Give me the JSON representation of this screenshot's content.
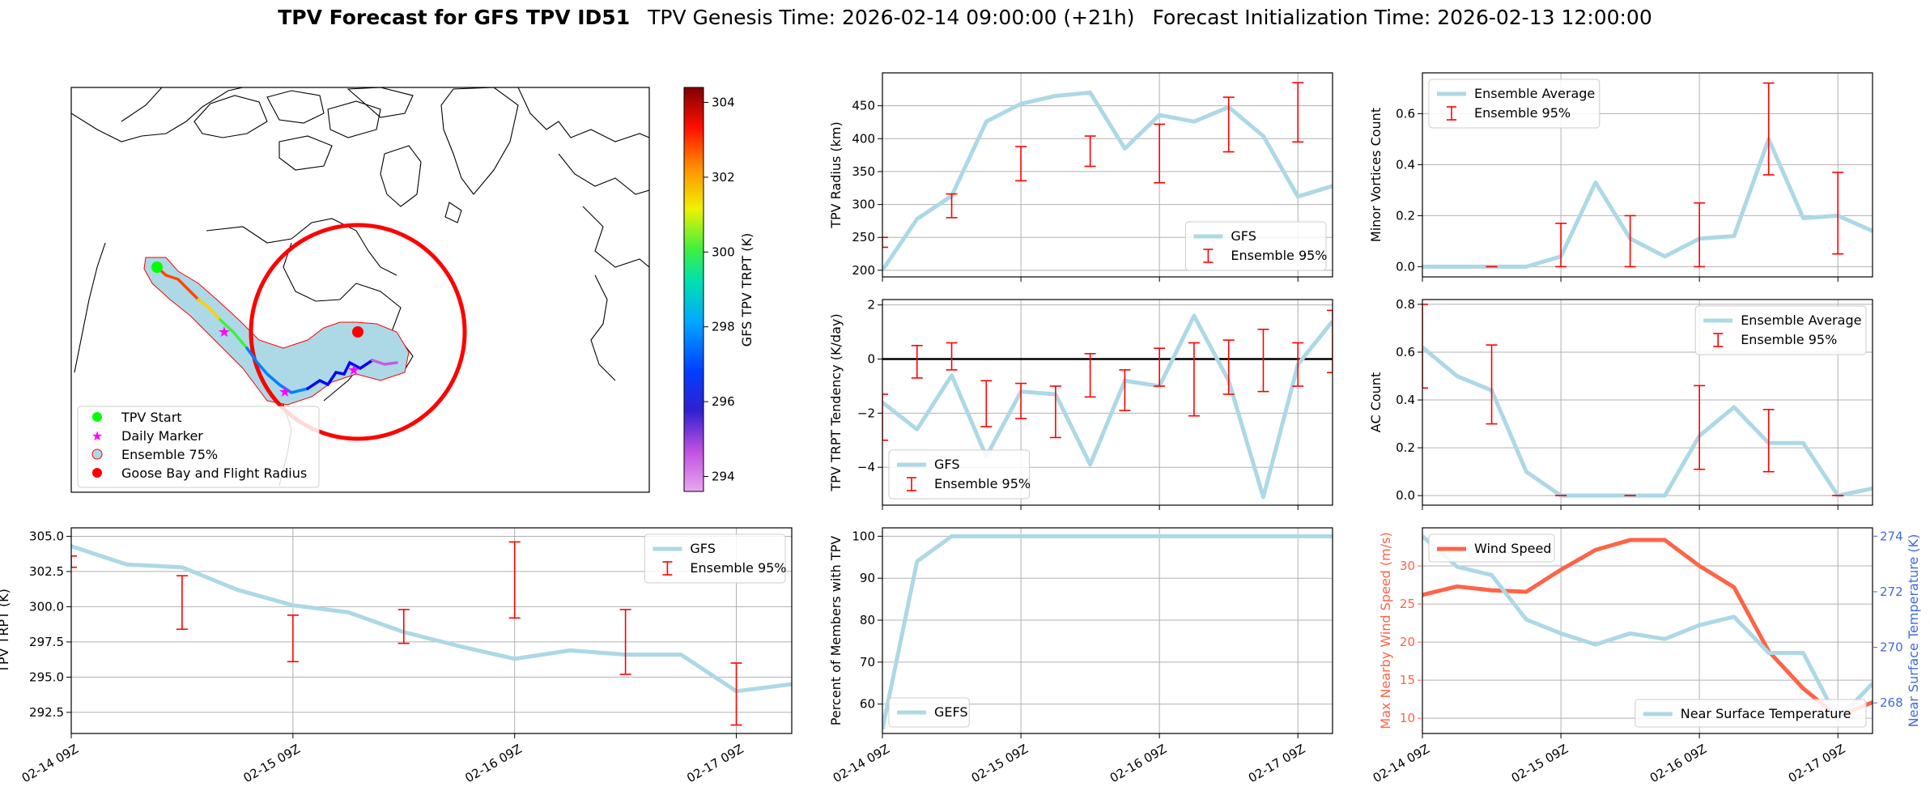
{
  "figure_title": {
    "bold": "TPV Forecast for GFS TPV ID51",
    "genesis": "TPV Genesis Time: 2026-02-14 09:00:00 (+21h)",
    "init": "Forecast Initialization Time: 2026-02-13 12:00:00"
  },
  "colors": {
    "line": "#add8e6",
    "error": "#ff0000",
    "wind": "#ff6347",
    "temp_axis": "#4169e1",
    "grid": "#b0b0b0",
    "map_red": "#ff0000",
    "start_green": "#00ff00",
    "marker_magenta": "#ff00ff"
  },
  "map": {
    "legend": [
      "TPV Start",
      "Daily Marker",
      "Ensemble 75%",
      "Goose Bay and Flight Radius"
    ],
    "colorbar": {
      "label": "GFS TPV TRPT (K)",
      "ticks": [
        "294",
        "296",
        "298",
        "300",
        "302",
        "304"
      ],
      "min": 293.6,
      "max": 304.4
    }
  },
  "time_ticks": [
    "02-14 09Z",
    "02-15 09Z",
    "02-16 09Z",
    "02-17 09Z"
  ],
  "chart_data": [
    {
      "id": "radius",
      "type": "line",
      "ylabel": "TPV Radius (km)",
      "ylim": [
        190,
        500
      ],
      "xlim": [
        0,
        13
      ],
      "ticks": [
        200,
        250,
        300,
        350,
        400,
        450
      ],
      "tick_labels": [
        "200",
        "250",
        "300",
        "350",
        "400",
        "450"
      ],
      "x": [
        0,
        1,
        2,
        3,
        4,
        5,
        6,
        7,
        8,
        9,
        10,
        11,
        12,
        13
      ],
      "series": [
        {
          "name": "GFS",
          "values": [
            200,
            278,
            313,
            426,
            453,
            465,
            470,
            385,
            436,
            426,
            448,
            404,
            312,
            328
          ]
        }
      ],
      "errorbars": [
        {
          "x": 0,
          "low": 235,
          "high": 250
        },
        {
          "x": 2,
          "low": 280,
          "high": 316
        },
        {
          "x": 4,
          "low": 336,
          "high": 388
        },
        {
          "x": 6,
          "low": 358,
          "high": 404
        },
        {
          "x": 8,
          "low": 333,
          "high": 422
        },
        {
          "x": 10,
          "low": 380,
          "high": 463
        },
        {
          "x": 12,
          "low": 395,
          "high": 485
        }
      ],
      "legend": [
        "GFS",
        "Ensemble 95%"
      ],
      "legend_pos": "lower right"
    },
    {
      "id": "tendency",
      "type": "line",
      "ylabel": "TPV TRPT Tendency (K/day)",
      "ylim": [
        -5.4,
        2.2
      ],
      "xlim": [
        0,
        13
      ],
      "ticks": [
        -4,
        -2,
        0,
        2
      ],
      "tick_labels": [
        "−4",
        "−2",
        "0",
        "2"
      ],
      "zero_line": true,
      "x": [
        0,
        1,
        2,
        3,
        4,
        5,
        6,
        7,
        8,
        9,
        10,
        11,
        12,
        13
      ],
      "series": [
        {
          "name": "GFS",
          "values": [
            -1.6,
            -2.6,
            -0.6,
            -3.6,
            -1.2,
            -1.3,
            -3.9,
            -0.8,
            -1.0,
            1.6,
            -0.8,
            -5.1,
            -0.2,
            1.4
          ]
        }
      ],
      "errorbars": [
        {
          "x": 0,
          "low": -3.0,
          "high": -1.3
        },
        {
          "x": 1,
          "low": -0.7,
          "high": 0.5
        },
        {
          "x": 2,
          "low": -0.4,
          "high": 0.6
        },
        {
          "x": 3,
          "low": -2.5,
          "high": -0.8
        },
        {
          "x": 4,
          "low": -2.2,
          "high": -0.9
        },
        {
          "x": 5,
          "low": -2.9,
          "high": -1.0
        },
        {
          "x": 6,
          "low": -1.4,
          "high": 0.2
        },
        {
          "x": 7,
          "low": -1.9,
          "high": -0.4
        },
        {
          "x": 8,
          "low": -1.0,
          "high": 0.4
        },
        {
          "x": 9,
          "low": -2.1,
          "high": 0.6
        },
        {
          "x": 10,
          "low": -1.3,
          "high": 0.7
        },
        {
          "x": 11,
          "low": -1.2,
          "high": 1.1
        },
        {
          "x": 12,
          "low": -1.0,
          "high": 0.6
        },
        {
          "x": 13,
          "low": -0.5,
          "high": 1.8
        }
      ],
      "legend": [
        "GFS",
        "Ensemble 95%"
      ],
      "legend_pos": "lower left"
    },
    {
      "id": "members",
      "type": "line",
      "ylabel": "Percent of Members with TPV",
      "ylim": [
        53,
        102
      ],
      "xlim": [
        0,
        13
      ],
      "ticks": [
        60,
        70,
        80,
        90,
        100
      ],
      "tick_labels": [
        "60",
        "70",
        "80",
        "90",
        "100"
      ],
      "x": [
        0,
        1,
        2,
        3,
        4,
        5,
        6,
        7,
        8,
        9,
        10,
        11,
        12,
        13
      ],
      "series": [
        {
          "name": "GEFS",
          "values": [
            54,
            94,
            100,
            100,
            100,
            100,
            100,
            100,
            100,
            100,
            100,
            100,
            100,
            100
          ]
        }
      ],
      "errorbars": [],
      "legend": [
        "GEFS"
      ],
      "legend_pos": "lower left"
    },
    {
      "id": "minor",
      "type": "line",
      "ylabel": "Minor Vortices Count",
      "ylim": [
        -0.04,
        0.76
      ],
      "xlim": [
        0,
        13
      ],
      "ticks": [
        0.0,
        0.2,
        0.4,
        0.6
      ],
      "tick_labels": [
        "0.0",
        "0.2",
        "0.4",
        "0.6"
      ],
      "x": [
        0,
        1,
        2,
        3,
        4,
        5,
        6,
        7,
        8,
        9,
        10,
        11,
        12,
        13
      ],
      "series": [
        {
          "name": "Ensemble Average",
          "values": [
            0,
            0,
            0,
            0,
            0.04,
            0.33,
            0.11,
            0.04,
            0.11,
            0.12,
            0.5,
            0.19,
            0.2,
            0.14
          ]
        }
      ],
      "errorbars": [
        {
          "x": 2,
          "low": 0,
          "high": 0
        },
        {
          "x": 4,
          "low": 0,
          "high": 0.17
        },
        {
          "x": 6,
          "low": 0,
          "high": 0.2
        },
        {
          "x": 8,
          "low": 0,
          "high": 0.25
        },
        {
          "x": 10,
          "low": 0.36,
          "high": 0.72
        },
        {
          "x": 12,
          "low": 0.05,
          "high": 0.37
        }
      ],
      "legend": [
        "Ensemble Average",
        "Ensemble 95%"
      ],
      "legend_pos": "upper left"
    },
    {
      "id": "ac",
      "type": "line",
      "ylabel": "AC Count",
      "ylim": [
        -0.04,
        0.82
      ],
      "xlim": [
        0,
        13
      ],
      "ticks": [
        0.0,
        0.2,
        0.4,
        0.6,
        0.8
      ],
      "tick_labels": [
        "0.0",
        "0.2",
        "0.4",
        "0.6",
        "0.8"
      ],
      "x": [
        0,
        1,
        2,
        3,
        4,
        5,
        6,
        7,
        8,
        9,
        10,
        11,
        12,
        13
      ],
      "series": [
        {
          "name": "Ensemble Average",
          "values": [
            0.62,
            0.5,
            0.44,
            0.1,
            0,
            0,
            0,
            0,
            0.25,
            0.37,
            0.22,
            0.22,
            0,
            0.03
          ]
        }
      ],
      "errorbars": [
        {
          "x": 0,
          "low": 0.45,
          "high": 0.8
        },
        {
          "x": 2,
          "low": 0.3,
          "high": 0.63
        },
        {
          "x": 4,
          "low": 0,
          "high": 0
        },
        {
          "x": 6,
          "low": 0,
          "high": 0
        },
        {
          "x": 8,
          "low": 0.11,
          "high": 0.46
        },
        {
          "x": 10,
          "low": 0.1,
          "high": 0.36
        },
        {
          "x": 12,
          "low": 0,
          "high": 0
        }
      ],
      "legend": [
        "Ensemble Average",
        "Ensemble 95%"
      ],
      "legend_pos": "upper right"
    },
    {
      "id": "trpt",
      "type": "line",
      "ylabel": "TPV TRPT (K)",
      "ylim": [
        291,
        305.6
      ],
      "xlim": [
        0,
        13
      ],
      "ticks": [
        292.5,
        295.0,
        297.5,
        300.0,
        302.5,
        305.0
      ],
      "tick_labels": [
        "292.5",
        "295.0",
        "297.5",
        "300.0",
        "302.5",
        "305.0"
      ],
      "x": [
        0,
        1,
        2,
        3,
        4,
        5,
        6,
        7,
        8,
        9,
        10,
        11,
        12,
        13
      ],
      "series": [
        {
          "name": "GFS",
          "values": [
            304.3,
            303.0,
            302.8,
            301.2,
            300.1,
            299.6,
            298.2,
            297.2,
            296.3,
            296.9,
            296.6,
            296.6,
            294.0,
            294.5
          ]
        }
      ],
      "errorbars": [
        {
          "x": 0,
          "low": 302.8,
          "high": 303.6
        },
        {
          "x": 2,
          "low": 298.4,
          "high": 302.2
        },
        {
          "x": 4,
          "low": 296.1,
          "high": 299.4
        },
        {
          "x": 6,
          "low": 297.4,
          "high": 299.8
        },
        {
          "x": 8,
          "low": 299.2,
          "high": 304.6
        },
        {
          "x": 10,
          "low": 295.2,
          "high": 299.8
        },
        {
          "x": 12,
          "low": 291.6,
          "high": 296.0
        }
      ],
      "legend": [
        "GFS",
        "Ensemble 95%"
      ],
      "legend_pos": "upper right"
    },
    {
      "id": "wind_temp",
      "type": "line",
      "ylabel": "Max Nearby Wind Speed (m/s)",
      "y2label": "Near Surface Temperature (K)",
      "ylim": [
        8,
        35
      ],
      "y2lim": [
        266.9,
        274.3
      ],
      "xlim": [
        0,
        13
      ],
      "ticks": [
        10,
        15,
        20,
        25,
        30
      ],
      "tick_labels": [
        "10",
        "15",
        "20",
        "25",
        "30"
      ],
      "ticks2": [
        268,
        270,
        272,
        274
      ],
      "tick_labels2": [
        "268",
        "270",
        "272",
        "274"
      ],
      "x": [
        0,
        1,
        2,
        3,
        4,
        5,
        6,
        7,
        8,
        9,
        10,
        11,
        12,
        13
      ],
      "series": [
        {
          "name": "Wind Speed",
          "axis": "left",
          "values": [
            26.2,
            27.3,
            26.8,
            26.6,
            29.5,
            32.1,
            33.4,
            33.4,
            30.0,
            27.2,
            18.8,
            13.9,
            10.2,
            12.1
          ]
        },
        {
          "name": "Near Surface Temperature",
          "axis": "right",
          "values": [
            274.0,
            272.9,
            272.6,
            271.0,
            270.5,
            270.1,
            270.5,
            270.3,
            270.8,
            271.1,
            269.8,
            269.8,
            267.4,
            268.7
          ]
        }
      ],
      "errorbars": [],
      "legend": [
        "Wind Speed",
        "Near Surface Temperature"
      ]
    }
  ]
}
